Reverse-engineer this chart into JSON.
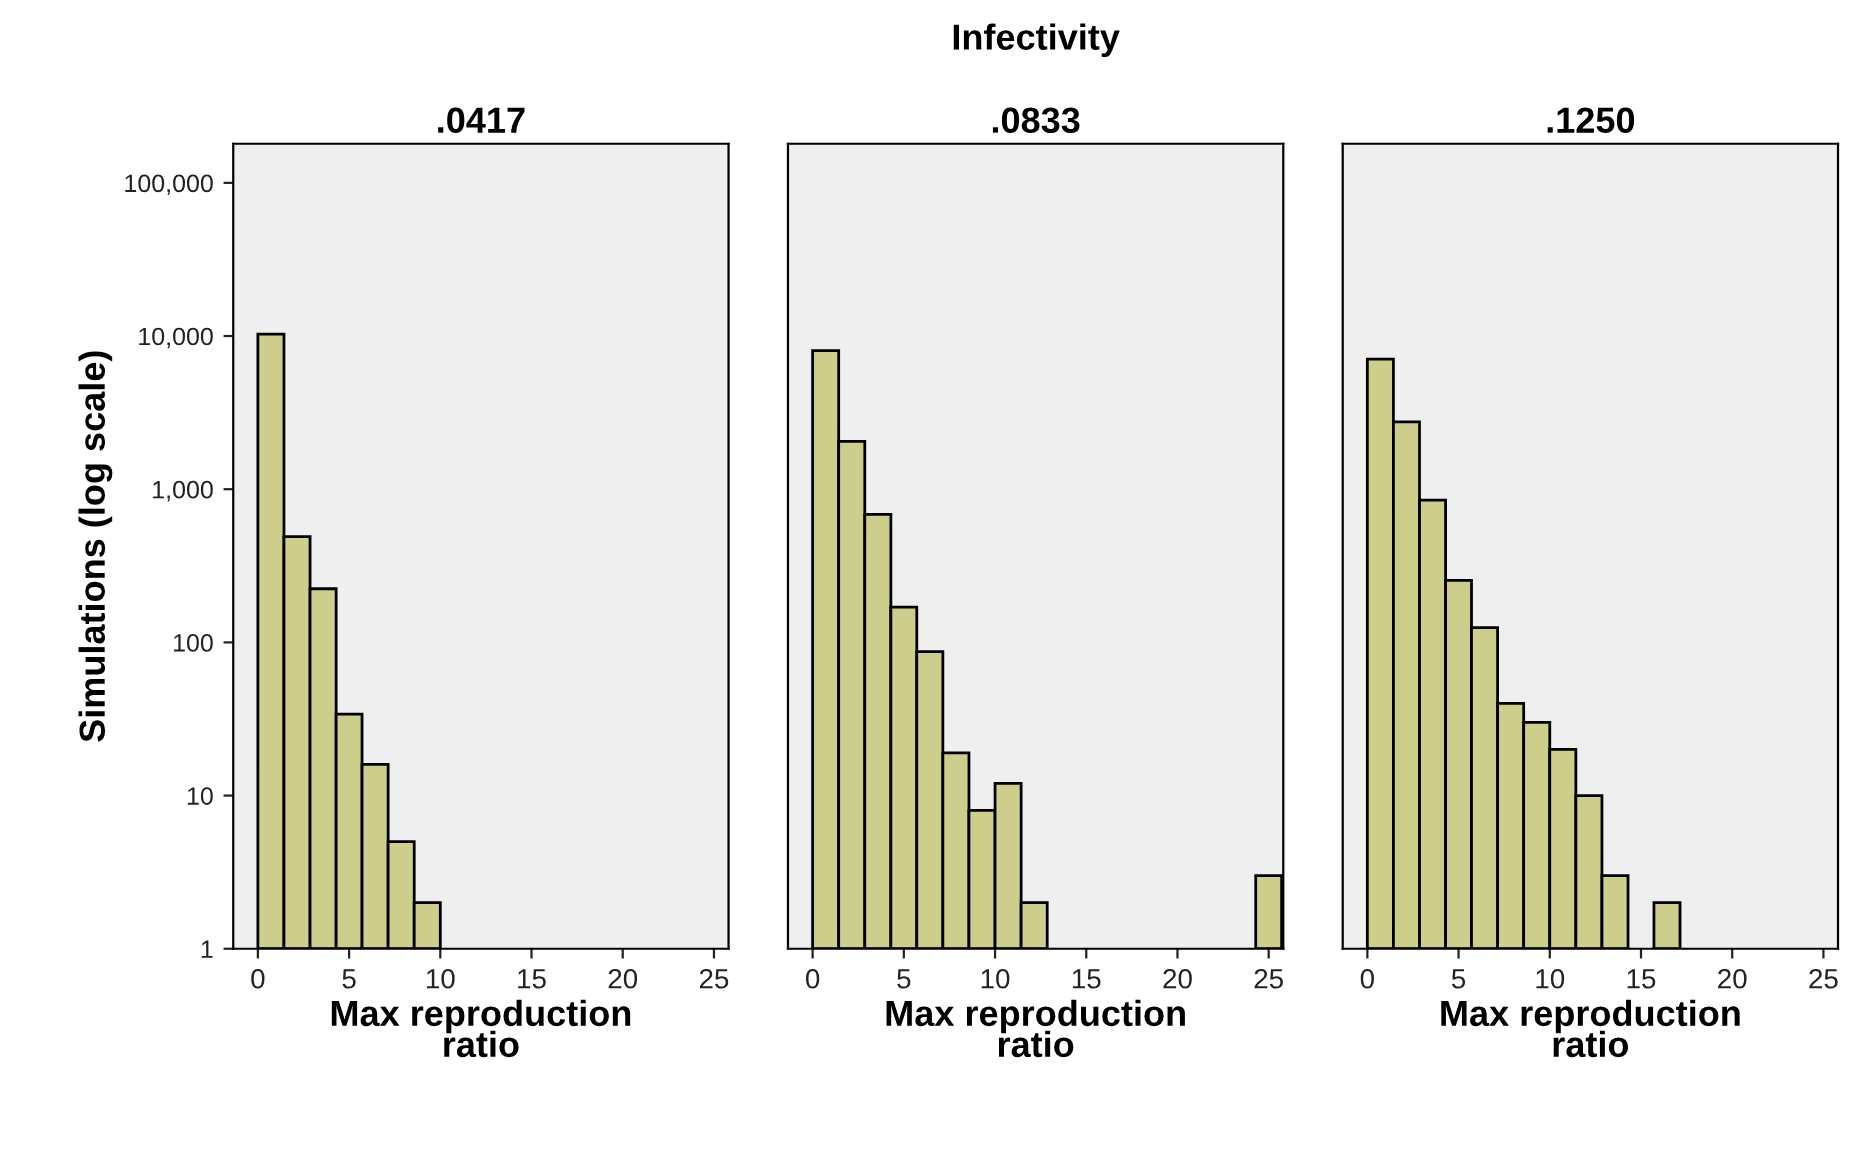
{
  "chart_data": [
    {
      "type": "histogram",
      "title": ".0417",
      "annotations": [
        "Infectivity"
      ],
      "xlabel": "Max reproduction\nratio",
      "ylabel": "Simulations (log scale)",
      "color": "#cdcd8c",
      "log": "y",
      "bins": [
        0,
        1.43,
        2.86,
        4.29,
        5.71,
        7.14,
        8.57,
        10,
        11.43,
        12.86,
        14.29,
        15.71,
        17.14,
        18.57,
        20,
        21.43,
        22.86,
        24.29,
        25.71
      ],
      "values": [
        10300,
        490,
        224,
        34,
        16,
        5,
        2,
        null,
        null,
        null,
        null,
        null,
        null,
        null,
        null,
        null,
        null,
        null
      ],
      "xlim": [
        -1.35,
        25.8
      ],
      "xticks": [
        0,
        5,
        10,
        15,
        20,
        25
      ],
      "ylim": [
        1,
        180000
      ],
      "yticks": [
        1,
        10,
        100,
        {
          "value": 1000,
          "label": "1,000"
        },
        {
          "value": 10000,
          "label": "10,000"
        },
        {
          "value": 100000,
          "label": "100,000"
        }
      ]
    },
    {
      "type": "histogram",
      "title": ".0833",
      "xlabel": "Max reproduction\nratio",
      "color": "#cdcd8c",
      "log": "y",
      "tick_labels": "x",
      "bins": [
        0,
        1.43,
        2.86,
        4.29,
        5.71,
        7.14,
        8.57,
        10,
        11.43,
        12.86,
        14.29,
        15.71,
        17.14,
        18.57,
        20,
        21.43,
        22.86,
        24.29,
        25.71
      ],
      "values": [
        8040,
        2050,
        684,
        170,
        87,
        19,
        8,
        12,
        2,
        null,
        null,
        null,
        null,
        null,
        null,
        null,
        null,
        3
      ],
      "xlim": [
        -1.35,
        25.8
      ],
      "xticks": [
        0,
        5,
        10,
        15,
        20,
        25
      ],
      "ylim": [
        1,
        180000
      ]
    },
    {
      "type": "histogram",
      "title": ".1250",
      "xlabel": "Max reproduction\nratio",
      "color": "#cdcd8c",
      "log": "y",
      "tick_labels": "x",
      "bins": [
        0,
        1.43,
        2.86,
        4.29,
        5.71,
        7.14,
        8.57,
        10,
        11.43,
        12.86,
        14.29,
        15.71,
        17.14,
        18.57,
        20,
        21.43,
        22.86,
        24.29,
        25.71
      ],
      "values": [
        7070,
        2750,
        850,
        254,
        125,
        40,
        30,
        20,
        10,
        3,
        null,
        2,
        null,
        null,
        null,
        null,
        null,
        null
      ],
      "xlim": [
        -1.35,
        25.8
      ],
      "xticks": [
        0,
        5,
        10,
        15,
        20,
        25
      ],
      "ylim": [
        1,
        180000
      ]
    }
  ]
}
